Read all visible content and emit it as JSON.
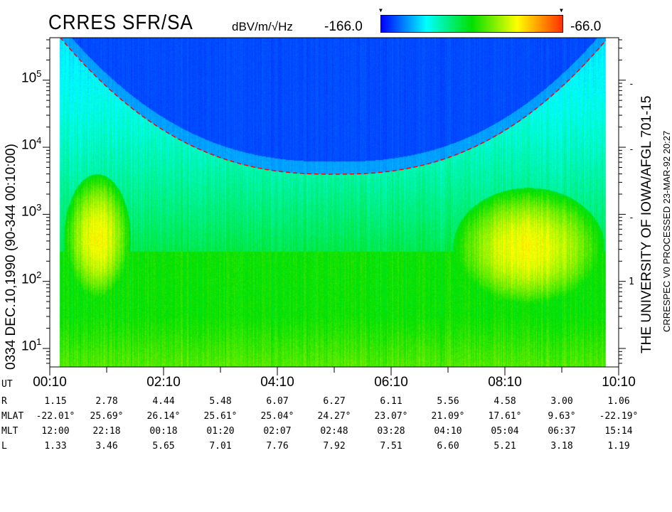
{
  "header": {
    "title": "CRRES SFR/SA",
    "units": "dBV/m/√Hz",
    "colorbar_min_label": "-166.0",
    "colorbar_max_label": "-66.0"
  },
  "left_label": "0334   DEC.10,1990   (90-344  00:10:00)",
  "right_label_1": "THE UNIVERSITY OF IOWA/AFGL 701-15",
  "right_label_2": "CRRESPEC V0    PROCESSED 23-MAR-92   20:27",
  "chart_data": {
    "type": "heatmap",
    "title": "CRRES SFR/SA",
    "colorbar": {
      "label": "dBV/m/√Hz",
      "min": -166.0,
      "max": -66.0,
      "colors": [
        "#0000ff",
        "#00ffff",
        "#00e000",
        "#ffff00",
        "#ff3000"
      ]
    },
    "y_axis": {
      "scale": "log",
      "range": [
        5.3,
        430000
      ],
      "ticks": [
        10,
        100,
        1000,
        10000,
        100000
      ],
      "tick_labels": [
        [
          "10",
          "1"
        ],
        [
          "10",
          "2"
        ],
        [
          "10",
          "3"
        ],
        [
          "10",
          "4"
        ],
        [
          "10",
          "5"
        ]
      ]
    },
    "right_axis_tick_labels": [
      "-",
      "-",
      "-",
      "1"
    ],
    "x_axis": {
      "label": "UT",
      "range": [
        "00:10",
        "10:10"
      ],
      "tick_labels": [
        "00:10",
        "02:10",
        "04:10",
        "06:10",
        "08:10",
        "10:10"
      ]
    },
    "overlay_curve": {
      "style": "red dashed",
      "color": "#ff0000"
    },
    "features": [
      {
        "desc_type": "intense emission",
        "ut_range": [
          "00:25",
          "01:35"
        ],
        "freq_range": [
          50,
          4000
        ]
      },
      {
        "desc_type": "intense emission",
        "ut_range": [
          "07:15",
          "09:55"
        ],
        "freq_range": [
          40,
          2500
        ]
      }
    ]
  },
  "ephemeris": {
    "ut_label": "UT",
    "rows": [
      {
        "label": "R",
        "values": [
          "1.15",
          "2.78",
          "4.44",
          "5.48",
          "6.07",
          "6.27",
          "6.11",
          "5.56",
          "4.58",
          "3.00",
          "1.06"
        ]
      },
      {
        "label": "MLAT",
        "values": [
          "-22.01°",
          "25.69°",
          "26.14°",
          "25.61°",
          "25.04°",
          "24.27°",
          "23.07°",
          "21.09°",
          "17.61°",
          "9.63°",
          "-22.19°"
        ]
      },
      {
        "label": "MLT",
        "values": [
          "12:00",
          "22:18",
          "00:18",
          "01:20",
          "02:07",
          "02:48",
          "03:28",
          "04:10",
          "05:04",
          "06:37",
          "15:14"
        ]
      },
      {
        "label": "L",
        "values": [
          "1.33",
          "3.46",
          "5.65",
          "7.01",
          "7.76",
          "7.92",
          "7.51",
          "6.60",
          "5.21",
          "3.18",
          "1.19"
        ]
      }
    ]
  }
}
